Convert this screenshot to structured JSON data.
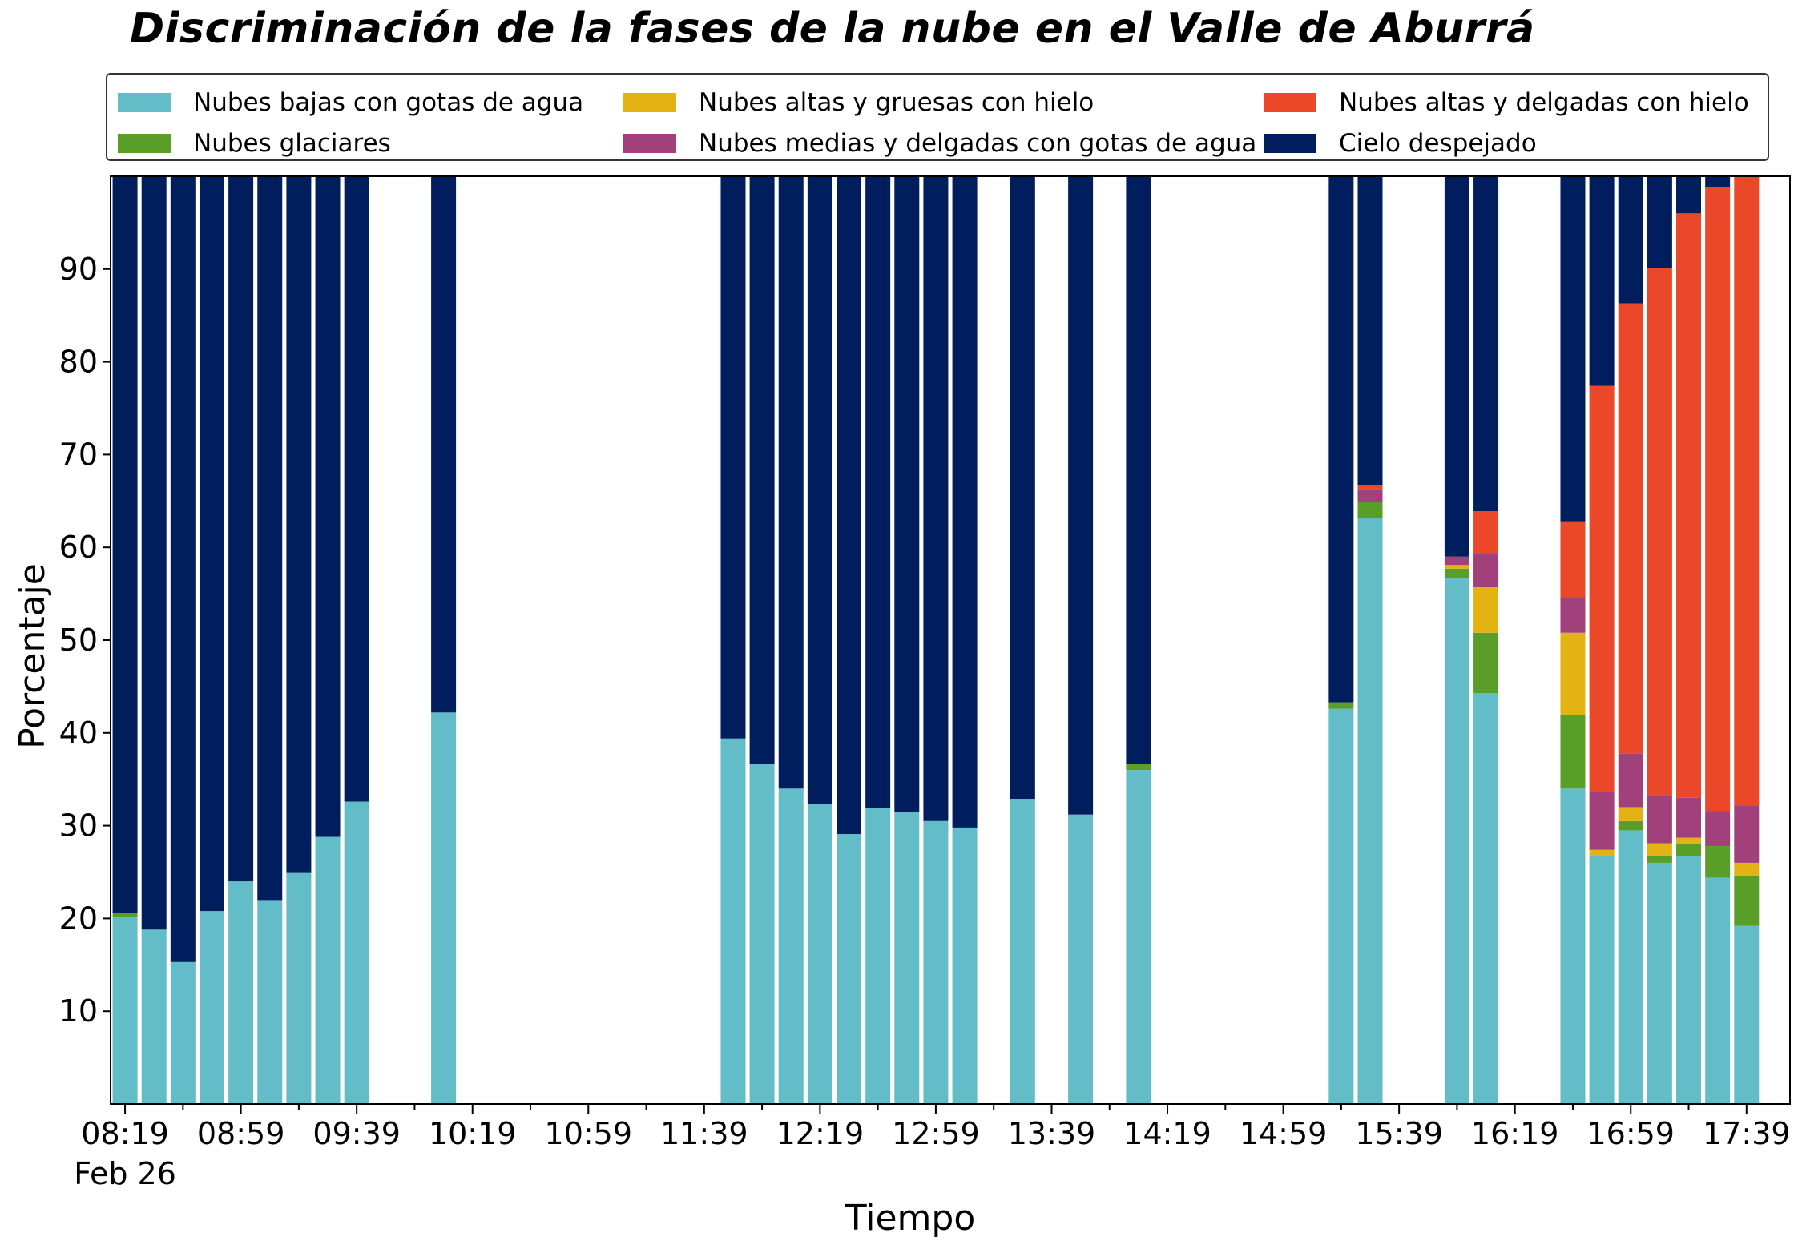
{
  "chart_data": {
    "type": "bar",
    "stacked": true,
    "title": "Discriminación de la fases de la nube en el Valle de Aburrá",
    "xlabel": "Tiempo",
    "ylabel": "Porcentaje",
    "ylim": [
      0,
      100
    ],
    "yticks": [
      10,
      20,
      30,
      40,
      50,
      60,
      70,
      80,
      90
    ],
    "xtick_labels": [
      "08:19",
      "08:59",
      "09:39",
      "10:19",
      "10:59",
      "11:39",
      "12:19",
      "12:59",
      "13:39",
      "14:19",
      "14:59",
      "15:39",
      "16:19",
      "16:59",
      "17:39"
    ],
    "date_label": "Feb 26",
    "legend_position": "top",
    "grid": false,
    "x": [
      "08:19",
      "08:29",
      "08:39",
      "08:49",
      "08:59",
      "09:09",
      "09:19",
      "09:29",
      "09:39",
      "10:09",
      "11:49",
      "11:59",
      "12:09",
      "12:19",
      "12:29",
      "12:39",
      "12:49",
      "12:59",
      "13:09",
      "13:29",
      "13:49",
      "14:09",
      "15:19",
      "15:29",
      "15:59",
      "16:09",
      "16:39",
      "16:49",
      "16:59",
      "17:09",
      "17:19",
      "17:29",
      "17:39"
    ],
    "series": [
      {
        "name": "Nubes bajas con gotas de agua",
        "color": "#63bdc8",
        "values": [
          20.2,
          18.8,
          15.3,
          20.8,
          24.0,
          21.9,
          24.9,
          28.8,
          32.6,
          42.2,
          39.4,
          36.7,
          34.0,
          32.3,
          29.1,
          31.9,
          31.5,
          30.5,
          29.8,
          32.9,
          31.2,
          36.0,
          42.6,
          63.2,
          56.7,
          44.3,
          34.0,
          26.7,
          29.5,
          26.0,
          26.7,
          24.4,
          19.2
        ]
      },
      {
        "name": "Nubes glaciares",
        "color": "#5a9e2a",
        "values": [
          0.4,
          0,
          0,
          0,
          0,
          0,
          0,
          0,
          0,
          0,
          0,
          0,
          0,
          0,
          0,
          0,
          0,
          0,
          0,
          0,
          0,
          0.7,
          0.7,
          1.7,
          1.0,
          6.5,
          7.9,
          0,
          1.0,
          0.7,
          1.3,
          3.4,
          5.4
        ]
      },
      {
        "name": "Nubes altas y gruesas con hielo",
        "color": "#e3b313",
        "values": [
          0,
          0,
          0,
          0,
          0,
          0,
          0,
          0,
          0,
          0,
          0,
          0,
          0,
          0,
          0,
          0,
          0,
          0,
          0,
          0,
          0,
          0,
          0,
          0,
          0.4,
          4.9,
          8.9,
          0.7,
          1.5,
          1.4,
          0.7,
          0,
          1.4
        ]
      },
      {
        "name": "Nubes medias y delgadas con gotas de agua",
        "color": "#a1407a",
        "values": [
          0,
          0,
          0,
          0,
          0,
          0,
          0,
          0,
          0,
          0,
          0,
          0,
          0,
          0,
          0,
          0,
          0,
          0,
          0,
          0,
          0,
          0,
          0,
          1.4,
          0.9,
          3.7,
          3.7,
          6.2,
          5.8,
          5.2,
          4.3,
          3.8,
          6.2
        ]
      },
      {
        "name": "Nubes altas y delgadas con hielo",
        "color": "#ea4829",
        "values": [
          0,
          0,
          0,
          0,
          0,
          0,
          0,
          0,
          0,
          0,
          0,
          0,
          0,
          0,
          0,
          0,
          0,
          0,
          0,
          0,
          0,
          0,
          0,
          0.4,
          0,
          4.5,
          8.3,
          43.8,
          48.5,
          56.8,
          63.0,
          67.2,
          67.8
        ]
      },
      {
        "name": "Cielo despejado",
        "color": "#001e5e",
        "values": [
          79.4,
          81.2,
          84.7,
          79.2,
          76.0,
          78.1,
          75.1,
          71.2,
          67.4,
          57.8,
          60.6,
          63.3,
          66.0,
          67.7,
          70.9,
          68.1,
          68.5,
          69.5,
          70.2,
          67.1,
          68.8,
          63.3,
          56.7,
          33.3,
          41.0,
          36.1,
          37.2,
          22.6,
          13.7,
          9.9,
          4.0,
          1.2,
          0
        ]
      }
    ]
  }
}
